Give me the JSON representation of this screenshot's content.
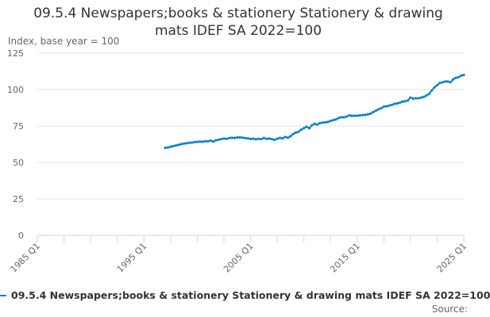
{
  "chart_data": {
    "type": "line",
    "title": "09.5.4 Newspapers;books & stationery Stationery & drawing mats IDEF SA 2022=100",
    "title_lines": [
      "09.5.4 Newspapers;books & stationery Stationery & drawing",
      "mats IDEF SA 2022=100"
    ],
    "ylabel": "Index, base year = 100",
    "xlabel": "",
    "ylim": [
      0,
      125
    ],
    "yticks": [
      0,
      25,
      50,
      75,
      100,
      125
    ],
    "xlim": [
      1985,
      2025
    ],
    "xticks": [
      "1985 Q1",
      "1995 Q1",
      "2005 Q1",
      "2015 Q1",
      "2025 Q1"
    ],
    "grid": true,
    "legend_position": "bottom",
    "color": "#0a80c8",
    "start": "1997 Q1",
    "frequency": "quarterly",
    "series": [
      {
        "name": "09.5.4 Newspapers;books & stationery Stationery & drawing mats IDEF SA 2022=100",
        "values": [
          60,
          60.3,
          60.8,
          61.2,
          61.6,
          62.1,
          62.6,
          62.9,
          63.2,
          63.5,
          63.6,
          64.0,
          64.1,
          64.3,
          64.2,
          64.6,
          64.5,
          65.0,
          64.3,
          65.2,
          65.6,
          66.0,
          66.4,
          66.2,
          66.7,
          66.9,
          66.8,
          67.1,
          67.2,
          67.0,
          66.7,
          66.5,
          66.1,
          66.3,
          65.9,
          66.2,
          66.0,
          66.8,
          66.2,
          66.4,
          66.0,
          65.5,
          66.3,
          66.8,
          66.5,
          67.5,
          67.0,
          68.0,
          69.5,
          70.5,
          71.0,
          72.5,
          73.5,
          74.5,
          73.5,
          75.5,
          76.5,
          76.0,
          77.0,
          77.3,
          77.5,
          77.8,
          78.5,
          79.0,
          79.5,
          80.5,
          81.0,
          81.0,
          81.5,
          82.3,
          82.0,
          82.0,
          82.0,
          82.3,
          82.5,
          82.6,
          83.0,
          83.5,
          84.5,
          85.5,
          86.5,
          87.2,
          88.3,
          88.5,
          89.0,
          89.5,
          90.2,
          90.5,
          91.0,
          91.7,
          92.0,
          92.5,
          94.5,
          93.8,
          94.0,
          94.0,
          94.5,
          95.0,
          96.0,
          97.0,
          99.5,
          101.5,
          103.0,
          104.5,
          105.0,
          105.5,
          105.5,
          105.0,
          107.0,
          108.0,
          108.5,
          109.5,
          110.0
        ]
      }
    ],
    "source_label": "Source:"
  }
}
